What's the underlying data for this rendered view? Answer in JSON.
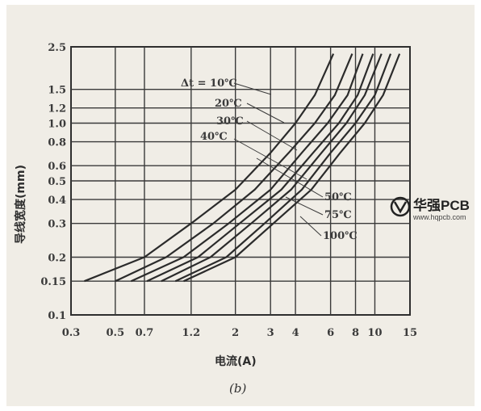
{
  "chart_data": {
    "type": "line",
    "xlabel": "电流(A)",
    "ylabel": "导线宽度(mm)",
    "caption": "(b)",
    "x_scale": "log",
    "y_scale": "log",
    "xlim": [
      0.3,
      15
    ],
    "ylim": [
      0.1,
      2.5
    ],
    "x_ticks": [
      0.3,
      0.5,
      0.7,
      1.2,
      2,
      3,
      4,
      6,
      8,
      10,
      15
    ],
    "x_tick_labels": [
      "0.3",
      "0.5",
      "0.7",
      "1.2",
      "2",
      "3",
      "4",
      "6",
      "8",
      "10",
      "15"
    ],
    "y_ticks": [
      0.1,
      0.15,
      0.2,
      0.3,
      0.4,
      0.5,
      0.6,
      0.8,
      1.0,
      1.2,
      1.5,
      2.5
    ],
    "y_tick_labels": [
      "0.1",
      "0.15",
      "0.2",
      "0.3",
      "0.4",
      "0.5",
      "0.6",
      "0.8",
      "1.0",
      "1.2",
      "1.5",
      "2.5"
    ],
    "grid": true,
    "series": [
      {
        "name": "Δt = 10℃",
        "points": [
          [
            0.35,
            0.15
          ],
          [
            0.7,
            0.2
          ],
          [
            1.2,
            0.3
          ],
          [
            2.0,
            0.45
          ],
          [
            3.0,
            0.7
          ],
          [
            4.0,
            1.0
          ],
          [
            5.0,
            1.4
          ],
          [
            6.2,
            2.3
          ]
        ]
      },
      {
        "name": "20℃",
        "points": [
          [
            0.5,
            0.15
          ],
          [
            0.9,
            0.2
          ],
          [
            1.55,
            0.3
          ],
          [
            2.5,
            0.45
          ],
          [
            3.7,
            0.7
          ],
          [
            5.0,
            1.0
          ],
          [
            6.3,
            1.4
          ],
          [
            7.7,
            2.3
          ]
        ]
      },
      {
        "name": "30℃",
        "points": [
          [
            0.6,
            0.15
          ],
          [
            1.1,
            0.2
          ],
          [
            1.85,
            0.3
          ],
          [
            3.0,
            0.45
          ],
          [
            4.3,
            0.7
          ],
          [
            5.8,
            1.0
          ],
          [
            7.3,
            1.4
          ],
          [
            8.7,
            2.3
          ]
        ]
      },
      {
        "name": "40℃",
        "points": [
          [
            0.72,
            0.15
          ],
          [
            1.3,
            0.2
          ],
          [
            2.1,
            0.3
          ],
          [
            3.4,
            0.45
          ],
          [
            4.9,
            0.7
          ],
          [
            6.6,
            1.0
          ],
          [
            8.2,
            1.4
          ],
          [
            9.8,
            2.3
          ]
        ]
      },
      {
        "name": "50℃",
        "points": [
          [
            0.85,
            0.15
          ],
          [
            1.5,
            0.2
          ],
          [
            2.4,
            0.3
          ],
          [
            3.8,
            0.45
          ],
          [
            5.4,
            0.7
          ],
          [
            7.2,
            1.0
          ],
          [
            8.9,
            1.4
          ],
          [
            10.8,
            2.3
          ]
        ]
      },
      {
        "name": "75℃",
        "points": [
          [
            1.0,
            0.15
          ],
          [
            1.8,
            0.2
          ],
          [
            2.8,
            0.3
          ],
          [
            4.3,
            0.45
          ],
          [
            6.0,
            0.7
          ],
          [
            8.0,
            1.0
          ],
          [
            10.0,
            1.4
          ],
          [
            12.0,
            2.3
          ]
        ]
      },
      {
        "name": "100℃",
        "points": [
          [
            1.1,
            0.15
          ],
          [
            2.0,
            0.2
          ],
          [
            3.1,
            0.3
          ],
          [
            4.8,
            0.45
          ],
          [
            6.7,
            0.7
          ],
          [
            8.9,
            1.0
          ],
          [
            11.0,
            1.4
          ],
          [
            13.3,
            2.3
          ]
        ]
      }
    ],
    "annotations": [
      "Δt = 10℃",
      "20℃",
      "30℃",
      "40℃",
      "50℃",
      "75℃",
      "100℃"
    ]
  },
  "watermark": {
    "brand": "华强PCB",
    "url": "www.hqpcb.com"
  }
}
